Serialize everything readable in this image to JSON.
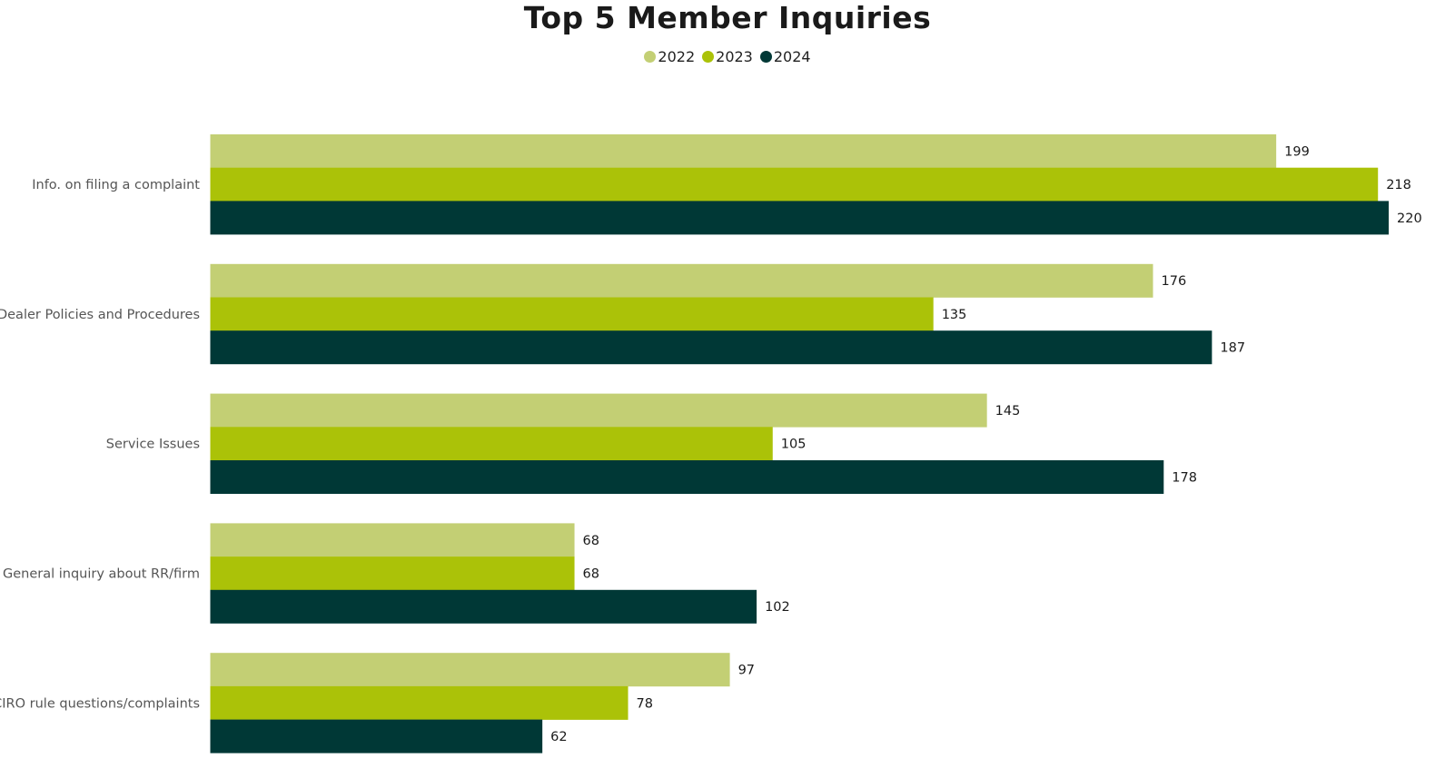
{
  "chart_data": {
    "type": "bar",
    "orientation": "horizontal",
    "title": "Top 5 Member Inquiries",
    "categories": [
      "Info. on filing a complaint",
      "Dealer Policies and Procedures",
      "Service Issues",
      "General inquiry about RR/firm",
      "CIRO rule questions/complaints"
    ],
    "series": [
      {
        "name": "2022",
        "color": "#c3cf74",
        "values": [
          199,
          176,
          145,
          68,
          97
        ]
      },
      {
        "name": "2023",
        "color": "#abc208",
        "values": [
          218,
          135,
          105,
          68,
          78
        ]
      },
      {
        "name": "2024",
        "color": "#003836",
        "values": [
          220,
          187,
          178,
          102,
          62
        ]
      }
    ],
    "xlim": [
      0,
      220
    ],
    "grid": false,
    "legend_position": "top-center",
    "data_labels": true
  }
}
